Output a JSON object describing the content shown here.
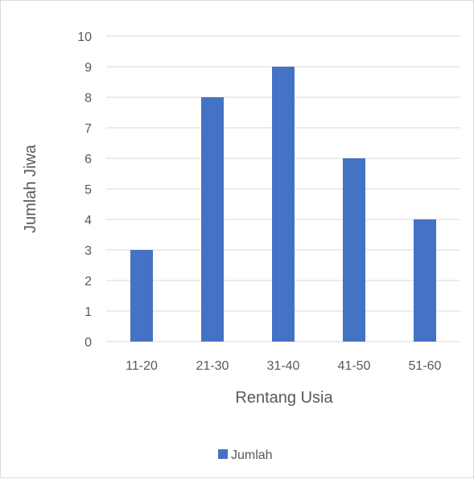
{
  "chart_data": {
    "type": "bar",
    "categories": [
      "11-20",
      "21-30",
      "31-40",
      "41-50",
      "51-60"
    ],
    "series": [
      {
        "name": "Jumlah",
        "values": [
          3,
          8,
          9,
          6,
          4
        ],
        "color": "#4472c4"
      }
    ],
    "xlabel": "Rentang Usia",
    "ylabel": "Jumlah Jiwa",
    "ylim": [
      0,
      10
    ],
    "yticks": [
      "0",
      "1",
      "2",
      "3",
      "4",
      "5",
      "6",
      "7",
      "8",
      "9",
      "10"
    ],
    "grid": true,
    "legend_position": "bottom"
  },
  "colors": {
    "gridline": "#d9d9d9",
    "text": "#595959",
    "border": "#d9d9d9"
  }
}
